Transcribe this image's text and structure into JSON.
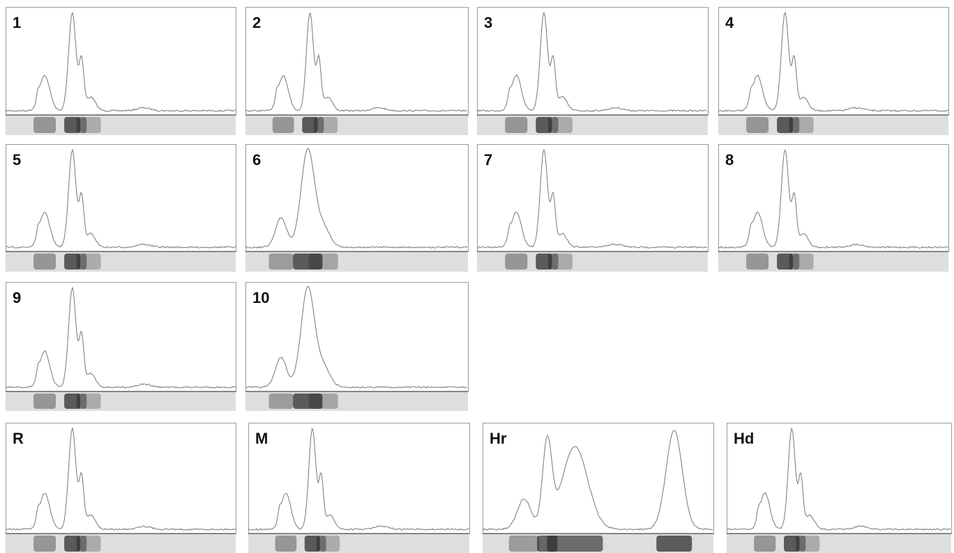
{
  "panels": [
    {
      "label": "1"
    },
    {
      "label": "2"
    },
    {
      "label": "3"
    },
    {
      "label": "4"
    },
    {
      "label": "5"
    },
    {
      "label": "6"
    },
    {
      "label": "7"
    },
    {
      "label": "8"
    },
    {
      "label": "9"
    },
    {
      "label": "10"
    },
    {
      "label": "R"
    },
    {
      "label": "M"
    },
    {
      "label": "Hr"
    },
    {
      "label": "Hd"
    }
  ]
}
